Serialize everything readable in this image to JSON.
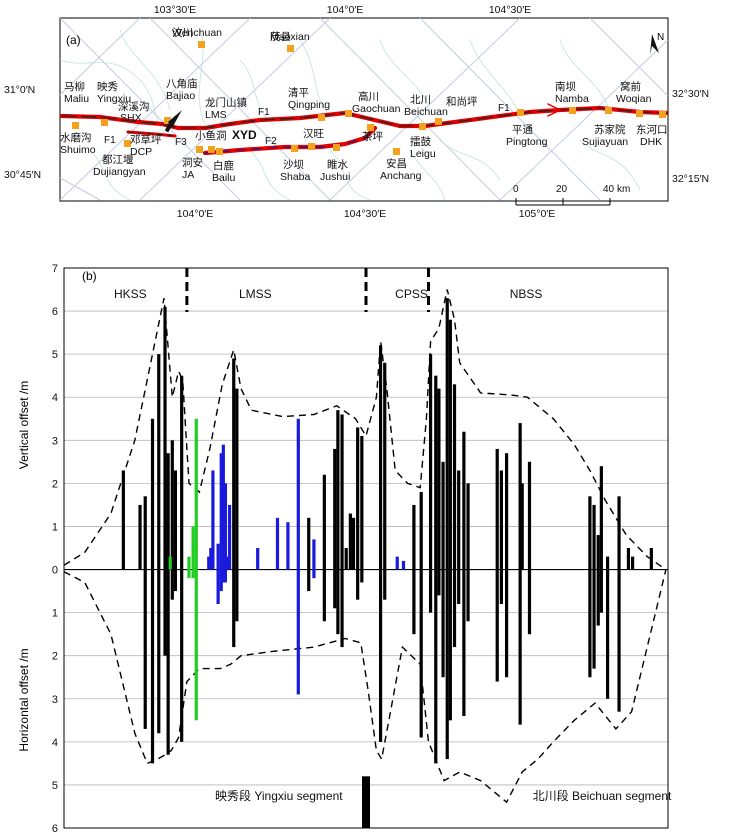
{
  "panel_a": {
    "label": "(a)",
    "top_lon_labels": [
      "103°30′E",
      "104°0′E",
      "104°30′E"
    ],
    "bottom_lon_labels": [
      "104°0′E",
      "104°30′E",
      "105°0′E"
    ],
    "left_lat_labels": [
      "31°0′N",
      "30°45′N"
    ],
    "right_lat_labels": [
      "32°30′N",
      "32°15′N"
    ],
    "north_label": "N",
    "fault_labels": [
      "F1",
      "F1",
      "F1",
      "F2",
      "F3"
    ],
    "scale_ticks": [
      "0",
      "20",
      "40"
    ],
    "scale_unit": "km",
    "places": [
      {
        "cn": "汶川",
        "en": "Wenchuan"
      },
      {
        "cn": "茂县",
        "en": "Maoxian"
      },
      {
        "cn": "马柳",
        "en": "Maliu"
      },
      {
        "cn": "映秀",
        "en": "Yingxiu"
      },
      {
        "cn": "深溪沟",
        "en": "SHX"
      },
      {
        "cn": "八角庙",
        "en": "Bajiao"
      },
      {
        "cn": "龙门山镇",
        "en": "LMS"
      },
      {
        "cn": "清平",
        "en": "Qingping"
      },
      {
        "cn": "高川",
        "en": "Gaochuan"
      },
      {
        "cn": "北川",
        "en": "Beichuan"
      },
      {
        "cn": "和尚坪",
        "en": ""
      },
      {
        "cn": "南坝",
        "en": "Namba"
      },
      {
        "cn": "窝前",
        "en": "Woqian"
      },
      {
        "cn": "水磨沟",
        "en": "Shuimo"
      },
      {
        "cn": "邓草坪",
        "en": "DCP"
      },
      {
        "cn": "都江堰",
        "en": "Dujiangyan"
      },
      {
        "cn": "小鱼洞",
        "en": "XYD"
      },
      {
        "cn": "洞安",
        "en": "JA"
      },
      {
        "cn": "白鹿",
        "en": "Bailu"
      },
      {
        "cn": "汉旺",
        "en": ""
      },
      {
        "cn": "沙坝",
        "en": "Shaba"
      },
      {
        "cn": "睢水",
        "en": "Jushui"
      },
      {
        "cn": "茶坪",
        "en": ""
      },
      {
        "cn": "擂鼓",
        "en": "Leigu"
      },
      {
        "cn": "安昌",
        "en": "Anchang"
      },
      {
        "cn": "平通",
        "en": "Pingtong"
      },
      {
        "cn": "苏家院",
        "en": "Sujiayuan"
      },
      {
        "cn": "东河口",
        "en": "DHK"
      }
    ]
  },
  "chart_data": {
    "type": "bar",
    "panel_label": "(b)",
    "ylabel_top": "Vertical offset /m",
    "ylabel_bottom": "Horizontal offset /m",
    "yticks_top": [
      "7",
      "6",
      "5",
      "4",
      "3",
      "2",
      "1",
      "0"
    ],
    "yticks_bottom": [
      "1",
      "2",
      "3",
      "4",
      "5",
      "6"
    ],
    "ylim_vertical": [
      0,
      7
    ],
    "ylim_horizontal": [
      0,
      6
    ],
    "xlim": [
      0,
      580
    ],
    "segments": [
      {
        "label": "HKSS",
        "x": 48
      },
      {
        "label": "LMSS",
        "x": 168
      },
      {
        "label": "CPSS",
        "x": 318
      },
      {
        "label": "NBSS",
        "x": 428
      }
    ],
    "boundaries": [
      118,
      290,
      350
    ],
    "segment_names": [
      {
        "text": "映秀段  Yingxiu segment",
        "x": 145
      },
      {
        "text": "北川段  Beichuan segment",
        "x": 450
      }
    ],
    "series": [
      {
        "name": "black",
        "color": "#000000",
        "bars": [
          [
            57,
            2.3,
            0
          ],
          [
            73,
            1.5,
            0
          ],
          [
            78,
            1.7,
            3.7
          ],
          [
            85,
            3.5,
            4.5
          ],
          [
            91,
            5.0,
            3.8
          ],
          [
            97,
            6.1,
            2.0
          ],
          [
            100,
            2.7,
            4.3
          ],
          [
            104,
            3.0,
            0.7
          ],
          [
            107,
            2.3,
            0.5
          ],
          [
            113,
            4.5,
            4.0
          ],
          [
            163,
            4.9,
            1.8
          ],
          [
            166,
            4.2,
            1.2
          ],
          [
            235,
            1.2,
            0.5
          ],
          [
            250,
            2.2,
            1.2
          ],
          [
            260,
            2.8,
            0.9
          ],
          [
            263,
            3.7,
            1.5
          ],
          [
            267,
            3.6,
            1.8
          ],
          [
            271,
            0.5,
            0
          ],
          [
            275,
            1.3,
            0
          ],
          [
            278,
            1.2,
            0
          ],
          [
            282,
            3.3,
            0.7
          ],
          [
            286,
            3.1,
            0.3
          ],
          [
            304,
            5.2,
            4.0
          ],
          [
            308,
            4.8,
            0.7
          ],
          [
            336,
            1.5,
            1.5
          ],
          [
            343,
            1.8,
            3.9
          ],
          [
            352,
            5.0,
            1.0
          ],
          [
            357,
            4.5,
            4.5
          ],
          [
            360,
            4.2,
            0.6
          ],
          [
            364,
            2.5,
            2.5
          ],
          [
            368,
            6.3,
            4.4
          ],
          [
            371,
            5.8,
            3.5
          ],
          [
            375,
            4.3,
            1.8
          ],
          [
            379,
            2.3,
            0.8
          ],
          [
            384,
            3.2,
            3.4
          ],
          [
            388,
            2.0,
            1.2
          ],
          [
            416,
            2.8,
            2.6
          ],
          [
            420,
            2.3,
            0.8
          ],
          [
            425,
            2.7,
            2.5
          ],
          [
            438,
            3.4,
            3.6
          ],
          [
            440,
            2.0,
            0
          ],
          [
            447,
            2.5,
            1.5
          ],
          [
            505,
            1.7,
            2.5
          ],
          [
            509,
            1.5,
            2.3
          ],
          [
            513,
            0.8,
            1.3
          ],
          [
            516,
            2.4,
            1.0
          ],
          [
            522,
            0.3,
            3.0
          ],
          [
            533,
            1.7,
            3.3
          ],
          [
            542,
            0.5,
            0
          ],
          [
            546,
            0.3,
            0
          ],
          [
            564,
            0.5,
            0
          ]
        ]
      },
      {
        "name": "blue",
        "color": "#1a1adc",
        "bars": [
          [
            139,
            0.3,
            0
          ],
          [
            141,
            0.5,
            0
          ],
          [
            143,
            2.3,
            0
          ],
          [
            148,
            0.6,
            0.8
          ],
          [
            151,
            2.7,
            0.5
          ],
          [
            153,
            2.9,
            0.3
          ],
          [
            155,
            2.0,
            0.3
          ],
          [
            157,
            0.3,
            0
          ],
          [
            159,
            1.5,
            0
          ],
          [
            186,
            0.5,
            0
          ],
          [
            205,
            1.2,
            0
          ],
          [
            215,
            1.1,
            0
          ],
          [
            225,
            3.5,
            2.9
          ],
          [
            240,
            0.7,
            0.2
          ],
          [
            320,
            0.3,
            0
          ],
          [
            326,
            0.2,
            0
          ]
        ]
      },
      {
        "name": "green",
        "color": "#22cc22",
        "bars": [
          [
            102,
            0.3,
            0
          ],
          [
            120,
            0.3,
            0.2
          ],
          [
            124,
            1.0,
            0.2
          ],
          [
            127,
            3.5,
            3.5
          ]
        ]
      }
    ],
    "envelope_color": "#000000"
  }
}
